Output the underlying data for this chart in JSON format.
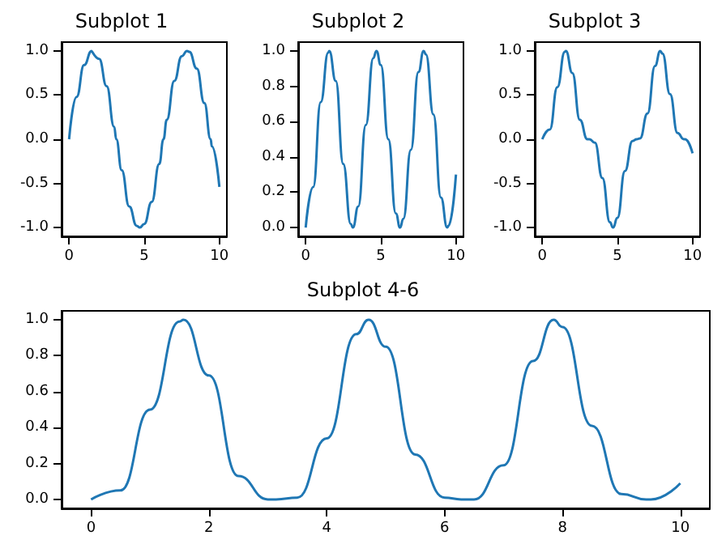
{
  "chart_data": [
    {
      "type": "line",
      "title": "Subplot 1",
      "color": "#1f77b4",
      "x": [
        0,
        0.5,
        1,
        1.5,
        1.57,
        2,
        2.5,
        3,
        3.14,
        3.5,
        4,
        4.5,
        4.71,
        5,
        5.5,
        6,
        6.28,
        6.5,
        7,
        7.5,
        7.85,
        8,
        8.5,
        9,
        9.42,
        9.5,
        10
      ],
      "values": [
        0,
        0.48,
        0.84,
        1.0,
        1.0,
        0.91,
        0.6,
        0.14,
        0,
        -0.35,
        -0.76,
        -0.98,
        -1.0,
        -0.96,
        -0.71,
        -0.28,
        0,
        0.22,
        0.66,
        0.94,
        1.0,
        0.99,
        0.8,
        0.41,
        0,
        -0.08,
        -0.54
      ],
      "xlim": [
        -0.5,
        10.5
      ],
      "xticks": [
        0,
        5,
        10
      ],
      "ylim": [
        -1.1,
        1.1
      ],
      "yticks": [
        {
          "value": -1,
          "label": "-1.0"
        },
        {
          "value": -0.5,
          "label": "-0.5"
        },
        {
          "value": 0,
          "label": "0.0"
        },
        {
          "value": 0.5,
          "label": "0.5"
        },
        {
          "value": 1,
          "label": "1.0"
        }
      ]
    },
    {
      "type": "line",
      "title": "Subplot 2",
      "color": "#1f77b4",
      "x": [
        0,
        0.5,
        1,
        1.5,
        1.57,
        2,
        2.5,
        3,
        3.14,
        3.5,
        4,
        4.5,
        4.71,
        5,
        5.5,
        6,
        6.28,
        6.5,
        7,
        7.5,
        7.85,
        8,
        8.5,
        9,
        9.42,
        9.5,
        10
      ],
      "values": [
        0,
        0.23,
        0.71,
        0.99,
        1.0,
        0.83,
        0.36,
        0.02,
        0,
        0.12,
        0.58,
        0.96,
        1.0,
        0.92,
        0.5,
        0.08,
        0,
        0.05,
        0.44,
        0.88,
        1.0,
        0.98,
        0.64,
        0.17,
        0,
        0.01,
        0.3
      ],
      "xlim": [
        -0.5,
        10.5
      ],
      "xticks": [
        0,
        5,
        10
      ],
      "ylim": [
        -0.05,
        1.05
      ],
      "yticks": [
        {
          "value": 0,
          "label": "0.0"
        },
        {
          "value": 0.2,
          "label": "0.2"
        },
        {
          "value": 0.4,
          "label": "0.4"
        },
        {
          "value": 0.6,
          "label": "0.6"
        },
        {
          "value": 0.8,
          "label": "0.8"
        },
        {
          "value": 1,
          "label": "1.0"
        }
      ]
    },
    {
      "type": "line",
      "title": "Subplot 3",
      "color": "#1f77b4",
      "x": [
        0,
        0.5,
        1,
        1.5,
        1.57,
        2,
        2.5,
        3,
        3.14,
        3.5,
        4,
        4.5,
        4.71,
        5,
        5.5,
        6,
        6.28,
        6.5,
        7,
        7.5,
        7.85,
        8,
        8.5,
        9,
        9.42,
        9.5,
        10
      ],
      "values": [
        0,
        0.11,
        0.59,
        0.99,
        1.0,
        0.75,
        0.22,
        0,
        0,
        -0.04,
        -0.44,
        -0.94,
        -1.0,
        -0.89,
        -0.36,
        -0.02,
        0,
        0.01,
        0.29,
        0.83,
        1.0,
        0.97,
        0.51,
        0.07,
        0,
        0,
        -0.16
      ],
      "xlim": [
        -0.5,
        10.5
      ],
      "xticks": [
        0,
        5,
        10
      ],
      "ylim": [
        -1.1,
        1.1
      ],
      "yticks": [
        {
          "value": -1,
          "label": "-1.0"
        },
        {
          "value": -0.5,
          "label": "-0.5"
        },
        {
          "value": 0,
          "label": "0.0"
        },
        {
          "value": 0.5,
          "label": "0.5"
        },
        {
          "value": 1,
          "label": "1.0"
        }
      ]
    },
    {
      "type": "line",
      "title": "Subplot 4-6",
      "color": "#1f77b4",
      "x": [
        0,
        0.5,
        1,
        1.5,
        1.57,
        2,
        2.5,
        3,
        3.14,
        3.5,
        4,
        4.5,
        4.71,
        5,
        5.5,
        6,
        6.28,
        6.5,
        7,
        7.5,
        7.85,
        8,
        8.5,
        9,
        9.42,
        9.5,
        10
      ],
      "values": [
        0,
        0.05,
        0.5,
        0.99,
        1.0,
        0.69,
        0.13,
        0,
        0,
        0.01,
        0.34,
        0.92,
        1.0,
        0.85,
        0.25,
        0.01,
        0,
        0,
        0.19,
        0.77,
        1.0,
        0.96,
        0.41,
        0.03,
        0,
        0,
        0.09
      ],
      "xlim": [
        -0.5,
        10.5
      ],
      "xticks": [
        0,
        2,
        4,
        6,
        8,
        10
      ],
      "ylim": [
        -0.05,
        1.05
      ],
      "yticks": [
        {
          "value": 0,
          "label": "0.0"
        },
        {
          "value": 0.2,
          "label": "0.2"
        },
        {
          "value": 0.4,
          "label": "0.4"
        },
        {
          "value": 0.6,
          "label": "0.6"
        },
        {
          "value": 0.8,
          "label": "0.8"
        },
        {
          "value": 1,
          "label": "1.0"
        }
      ]
    }
  ]
}
